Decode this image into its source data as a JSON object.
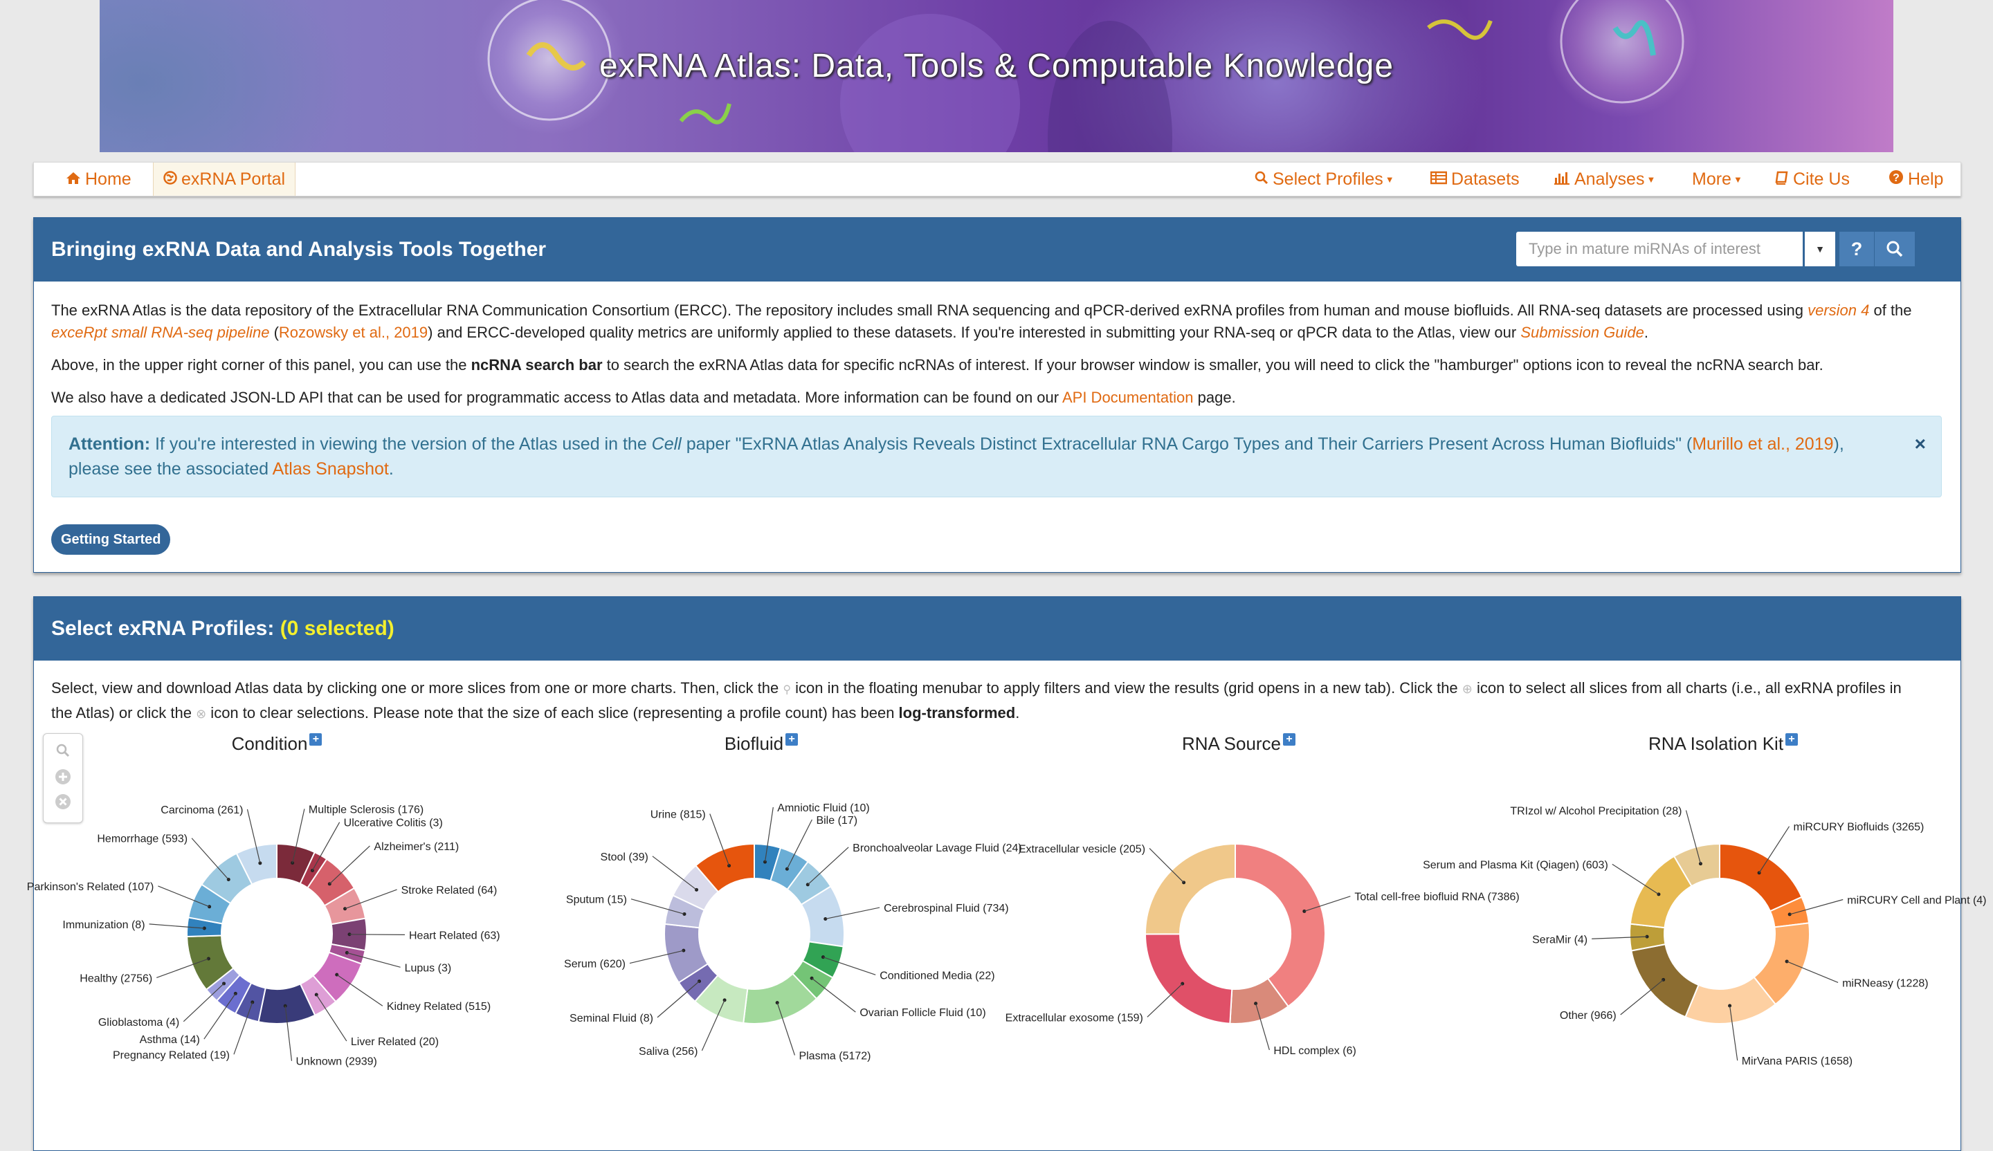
{
  "banner": {
    "title": "exRNA Atlas: Data, Tools & Computable Knowledge"
  },
  "nav": {
    "home": "Home",
    "portal": "exRNA Portal",
    "select_profiles": "Select Profiles",
    "datasets": "Datasets",
    "analyses": "Analyses",
    "more": "More",
    "cite_us": "Cite Us",
    "help": "Help"
  },
  "intro_panel": {
    "title": "Bringing exRNA Data and Analysis Tools Together",
    "search_placeholder": "Type in mature miRNAs of interest",
    "help_label": "?",
    "para1": {
      "a": "The exRNA Atlas is the data repository of the Extracellular RNA Communication Consortium (ERCC). The repository includes small RNA sequencing and qPCR-derived exRNA profiles from human and mouse biofluids. All RNA-seq datasets are processed using ",
      "version_link": "version 4",
      "b": " of the",
      "pipeline_link": "exceRpt small RNA-seq pipeline",
      "c": " (",
      "rozowsky_link": "Rozowsky et al., 2019",
      "d": ") and ERCC-developed quality metrics are uniformly applied to these datasets. If you're interested in submitting your RNA-seq or qPCR data to the Atlas, view our ",
      "guide_link": "Submission Guide",
      "e": "."
    },
    "para2": {
      "a": "Above, in the upper right corner of this panel, you can use the ",
      "bold": "ncRNA search bar",
      "b": " to search the exRNA Atlas data for specific ncRNAs of interest. If your browser window is smaller, you will need to click the \"hamburger\" options icon to reveal the ncRNA search bar."
    },
    "para3": {
      "a": "We also have a dedicated JSON-LD API that can be used for programmatic access to Atlas data and metadata. More information can be found on our ",
      "api_link": "API Documentation",
      "b": " page."
    },
    "attention": {
      "label": "Attention:",
      "a": " If you're interested in viewing the version of the Atlas used in the ",
      "cell": "Cell",
      "b": " paper \"ExRNA Atlas Analysis Reveals Distinct Extracellular RNA Cargo Types and Their Carriers Present Across Human Biofluids\" (",
      "murillo_link": "Murillo et al., 2019",
      "c": "),",
      "d": "please see the associated ",
      "snapshot_link": "Atlas Snapshot",
      "e": ".",
      "close": "×"
    },
    "getting_started": "Getting Started"
  },
  "profiles_panel": {
    "title": "Select exRNA Profiles:",
    "selected": "(0 selected)",
    "desc": {
      "a": "Select, view and download Atlas data by clicking one or more slices from one or more charts. Then, click the ",
      "b": " icon in the floating menubar to apply filters and view the results (grid opens in a new tab). Click the ",
      "c": " icon to select all slices from all charts (i.e., all exRNA profiles in",
      "d": "the Atlas) or click the ",
      "e": " icon to clear selections. Please note that the size of each slice (representing a profile count) has been ",
      "bold": "log-transformed",
      "f": "."
    }
  },
  "chart_data": [
    {
      "type": "pie",
      "title": "Condition",
      "slices": [
        {
          "label": "Multiple Sclerosis (176)",
          "value": 176,
          "color": "#7b2a3a"
        },
        {
          "label": "Ulcerative Colitis (3)",
          "value": 3,
          "color": "#a8364a"
        },
        {
          "label": "Alzheimer's (211)",
          "value": 211,
          "color": "#d6616b"
        },
        {
          "label": "Stroke Related (64)",
          "value": 64,
          "color": "#e7969c"
        },
        {
          "label": "Heart Related (63)",
          "value": 63,
          "color": "#7b4173"
        },
        {
          "label": "Lupus (3)",
          "value": 3,
          "color": "#a55194"
        },
        {
          "label": "Kidney Related (515)",
          "value": 515,
          "color": "#ce6dbd"
        },
        {
          "label": "Liver Related (20)",
          "value": 20,
          "color": "#de9ed6"
        },
        {
          "label": "Unknown (2939)",
          "value": 2939,
          "color": "#393b79"
        },
        {
          "label": "Pregnancy Related (19)",
          "value": 19,
          "color": "#5254a3"
        },
        {
          "label": "Asthma (14)",
          "value": 14,
          "color": "#6b6ecf"
        },
        {
          "label": "Glioblastoma (4)",
          "value": 4,
          "color": "#9c9ede"
        },
        {
          "label": "Healthy (2756)",
          "value": 2756,
          "color": "#637939"
        },
        {
          "label": "Immunization (8)",
          "value": 8,
          "color": "#3182bd"
        },
        {
          "label": "Parkinson's Related (107)",
          "value": 107,
          "color": "#6baed6"
        },
        {
          "label": "Hemorrhage (593)",
          "value": 593,
          "color": "#9ecae1"
        },
        {
          "label": "Carcinoma (261)",
          "value": 261,
          "color": "#c6dbef"
        }
      ]
    },
    {
      "type": "pie",
      "title": "Biofluid",
      "slices": [
        {
          "label": "Amniotic Fluid (10)",
          "value": 10,
          "color": "#3182bd"
        },
        {
          "label": "Bile (17)",
          "value": 17,
          "color": "#6baed6"
        },
        {
          "label": "Bronchoalveolar Lavage Fluid (24)",
          "value": 24,
          "color": "#9ecae1"
        },
        {
          "label": "Cerebrospinal Fluid (734)",
          "value": 734,
          "color": "#c6dbef"
        },
        {
          "label": "Conditioned Media (22)",
          "value": 22,
          "color": "#31a354"
        },
        {
          "label": "Ovarian Follicle Fluid (10)",
          "value": 10,
          "color": "#74c476"
        },
        {
          "label": "Plasma (5172)",
          "value": 5172,
          "color": "#a1d99b"
        },
        {
          "label": "Saliva (256)",
          "value": 256,
          "color": "#c7e9c0"
        },
        {
          "label": "Seminal Fluid (8)",
          "value": 8,
          "color": "#756bb1"
        },
        {
          "label": "Serum (620)",
          "value": 620,
          "color": "#9e9ac8"
        },
        {
          "label": "Sputum (15)",
          "value": 15,
          "color": "#bcbddc"
        },
        {
          "label": "Stool (39)",
          "value": 39,
          "color": "#dadaeb"
        },
        {
          "label": "Urine (815)",
          "value": 815,
          "color": "#e6550d"
        }
      ]
    },
    {
      "type": "pie",
      "title": "RNA Source",
      "slices": [
        {
          "label": "Total cell-free biofluid RNA (7386)",
          "value": 7386,
          "color": "#f08080"
        },
        {
          "label": "HDL complex (6)",
          "value": 6,
          "color": "#d98a7a"
        },
        {
          "label": "Extracellular exosome (159)",
          "value": 159,
          "color": "#e05068"
        },
        {
          "label": "Extracellular vesicle (205)",
          "value": 205,
          "color": "#f0c88a"
        }
      ]
    },
    {
      "type": "pie",
      "title": "RNA Isolation Kit",
      "slices": [
        {
          "label": "miRCURY Biofluids (3265)",
          "value": 3265,
          "color": "#e6550d"
        },
        {
          "label": "miRCURY Cell and Plant (4)",
          "value": 4,
          "color": "#fd8d3c"
        },
        {
          "label": "miRNeasy (1228)",
          "value": 1228,
          "color": "#fdae6b"
        },
        {
          "label": "MirVana PARIS (1658)",
          "value": 1658,
          "color": "#fdd0a2"
        },
        {
          "label": "Other (966)",
          "value": 966,
          "color": "#8c6d31"
        },
        {
          "label": "SeraMir (4)",
          "value": 4,
          "color": "#bd9e39"
        },
        {
          "label": "Serum and Plasma Kit (Qiagen) (603)",
          "value": 603,
          "color": "#e7ba52"
        },
        {
          "label": "TRIzol w/ Alcohol Precipitation (28)",
          "value": 28,
          "color": "#e7cb94"
        }
      ]
    }
  ]
}
